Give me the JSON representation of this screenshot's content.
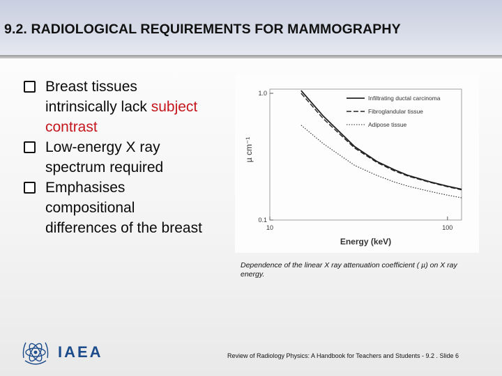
{
  "slide": {
    "title": "9.2. RADIOLOGICAL REQUIREMENTS FOR MAMMOGRAPHY",
    "bullets": [
      {
        "lines": [
          {
            "plain": "Breast tissues"
          },
          {
            "plain": "intrinsically lack ",
            "highlight": "subject"
          },
          {
            "plain": "",
            "highlight": "contrast"
          }
        ]
      },
      {
        "lines": [
          {
            "plain": "Low-energy X ray"
          },
          {
            "plain": "spectrum required"
          }
        ]
      },
      {
        "lines": [
          {
            "plain": "Emphasises"
          },
          {
            "plain": "compositional"
          },
          {
            "plain": "differences of the breast"
          }
        ]
      }
    ],
    "caption": "Dependence of the linear X ray attenuation coefficient ( µ) on X ray energy.",
    "logo_text": "IAEA",
    "footer": "Review of Radiology Physics: A Handbook for Teachers and Students - 9.2 . Slide 6",
    "colors": {
      "highlight": "#c4161c",
      "logo": "#1b4b8a"
    }
  },
  "chart_data": {
    "type": "line",
    "xlabel": "Energy (keV)",
    "ylabel": "µ cm⁻¹",
    "x_scale": "log",
    "y_scale": "log",
    "xlim": [
      10,
      120
    ],
    "ylim": [
      0.1,
      1.0
    ],
    "x_ticks": [
      {
        "value": 10,
        "label": "10"
      },
      {
        "value": 100,
        "label": "100"
      }
    ],
    "y_ticks": [
      {
        "value": 0.1,
        "label": "0.1"
      },
      {
        "value": 1.0,
        "label": "1.0"
      }
    ],
    "legend_position": "top-right",
    "series": [
      {
        "name": "Infiltrating ductal carcinoma",
        "style": "solid",
        "x": [
          15,
          20,
          30,
          40,
          50,
          60,
          80,
          100,
          120
        ],
        "y": [
          1.05,
          0.66,
          0.38,
          0.29,
          0.25,
          0.225,
          0.2,
          0.185,
          0.175
        ]
      },
      {
        "name": "Fibroglandular tissue",
        "style": "dashed",
        "x": [
          15,
          20,
          30,
          40,
          50,
          60,
          80,
          100,
          120
        ],
        "y": [
          1.0,
          0.63,
          0.37,
          0.285,
          0.245,
          0.222,
          0.198,
          0.183,
          0.173
        ]
      },
      {
        "name": "Adipose tissue",
        "style": "dotted",
        "x": [
          15,
          20,
          30,
          40,
          50,
          60,
          80,
          100,
          120
        ],
        "y": [
          0.56,
          0.4,
          0.27,
          0.225,
          0.2,
          0.185,
          0.168,
          0.157,
          0.15
        ]
      }
    ]
  }
}
